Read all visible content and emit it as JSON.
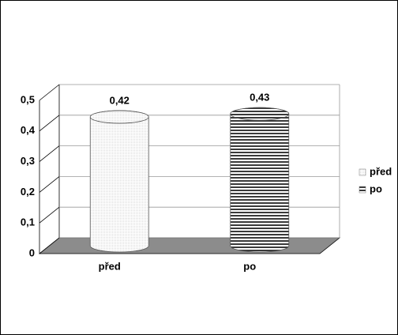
{
  "chart_data": {
    "type": "bar",
    "categories": [
      "před",
      "po"
    ],
    "values": [
      0.42,
      0.43
    ],
    "value_labels": [
      "0,42",
      "0,43"
    ],
    "colors": [
      "#d9d9d9",
      "#3a3a3a"
    ],
    "ylim": [
      0,
      0.5
    ],
    "yticks": [
      0,
      {
        "value": 0.1,
        "label": "0,1"
      },
      {
        "value": 0.2,
        "label": "0,2"
      },
      {
        "value": 0.3,
        "label": "0,3"
      },
      {
        "value": 0.4,
        "label": "0,4"
      },
      {
        "value": 0.5,
        "label": "0,5"
      }
    ],
    "grid": true,
    "legend": "right"
  }
}
